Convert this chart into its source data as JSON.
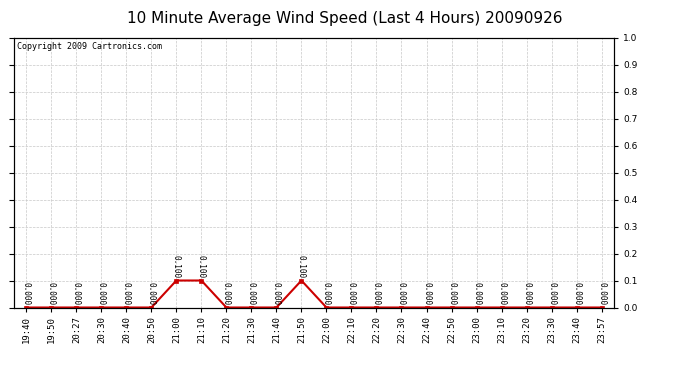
{
  "title": "10 Minute Average Wind Speed (Last 4 Hours) 20090926",
  "copyright": "Copyright 2009 Cartronics.com",
  "x_labels": [
    "19:40",
    "19:50",
    "20:27",
    "20:30",
    "20:40",
    "20:50",
    "21:00",
    "21:10",
    "21:20",
    "21:30",
    "21:40",
    "21:50",
    "22:00",
    "22:10",
    "22:20",
    "22:30",
    "22:40",
    "22:50",
    "23:00",
    "23:10",
    "23:20",
    "23:30",
    "23:40",
    "23:57"
  ],
  "y_values": [
    0.0,
    0.0,
    0.0,
    0.0,
    0.0,
    0.0,
    0.1,
    0.1,
    0.0,
    0.0,
    0.0,
    0.1,
    0.0,
    0.0,
    0.0,
    0.0,
    0.0,
    0.0,
    0.0,
    0.0,
    0.0,
    0.0,
    0.0,
    0.0
  ],
  "line_color": "#cc0000",
  "marker_color": "#cc0000",
  "grid_color": "#c8c8c8",
  "background_color": "#ffffff",
  "plot_bg_color": "#ffffff",
  "ylim": [
    0.0,
    1.0
  ],
  "yticks": [
    0.0,
    0.1,
    0.2,
    0.3,
    0.4,
    0.5,
    0.6,
    0.7,
    0.8,
    0.9,
    1.0
  ],
  "title_fontsize": 11,
  "label_fontsize": 6.5,
  "copyright_fontsize": 6,
  "point_label_fontsize": 5.5
}
